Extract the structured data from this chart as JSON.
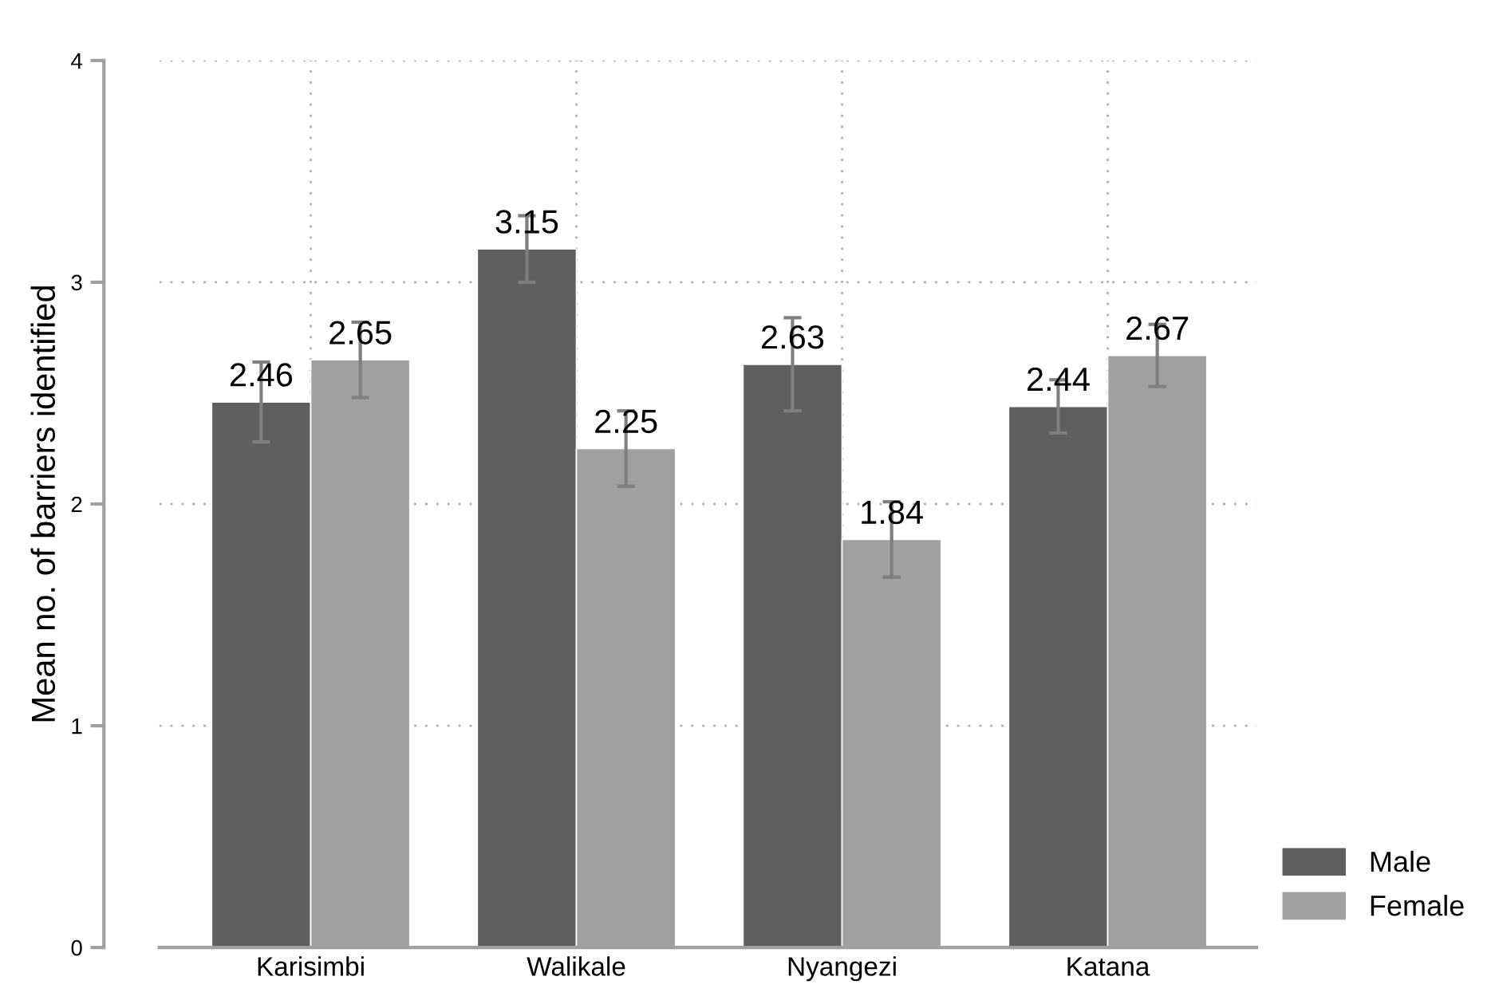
{
  "chart_data": {
    "type": "bar",
    "ylabel": "Mean no. of barriers identified",
    "categories": [
      "Karisimbi",
      "Walikale",
      "Nyangezi",
      "Katana"
    ],
    "series": [
      {
        "name": "Male",
        "color": "#5f5f5f",
        "values": [
          2.46,
          3.15,
          2.63,
          2.44
        ],
        "errors": [
          0.18,
          0.15,
          0.21,
          0.12
        ]
      },
      {
        "name": "Female",
        "color": "#a0a0a0",
        "values": [
          2.65,
          2.25,
          1.84,
          2.67
        ],
        "errors": [
          0.17,
          0.17,
          0.17,
          0.14
        ]
      }
    ],
    "ylim": [
      0,
      4
    ],
    "yticks": [
      0,
      1,
      2,
      3,
      4
    ],
    "grid": true,
    "legend": "bottom right",
    "data_labels": true
  }
}
